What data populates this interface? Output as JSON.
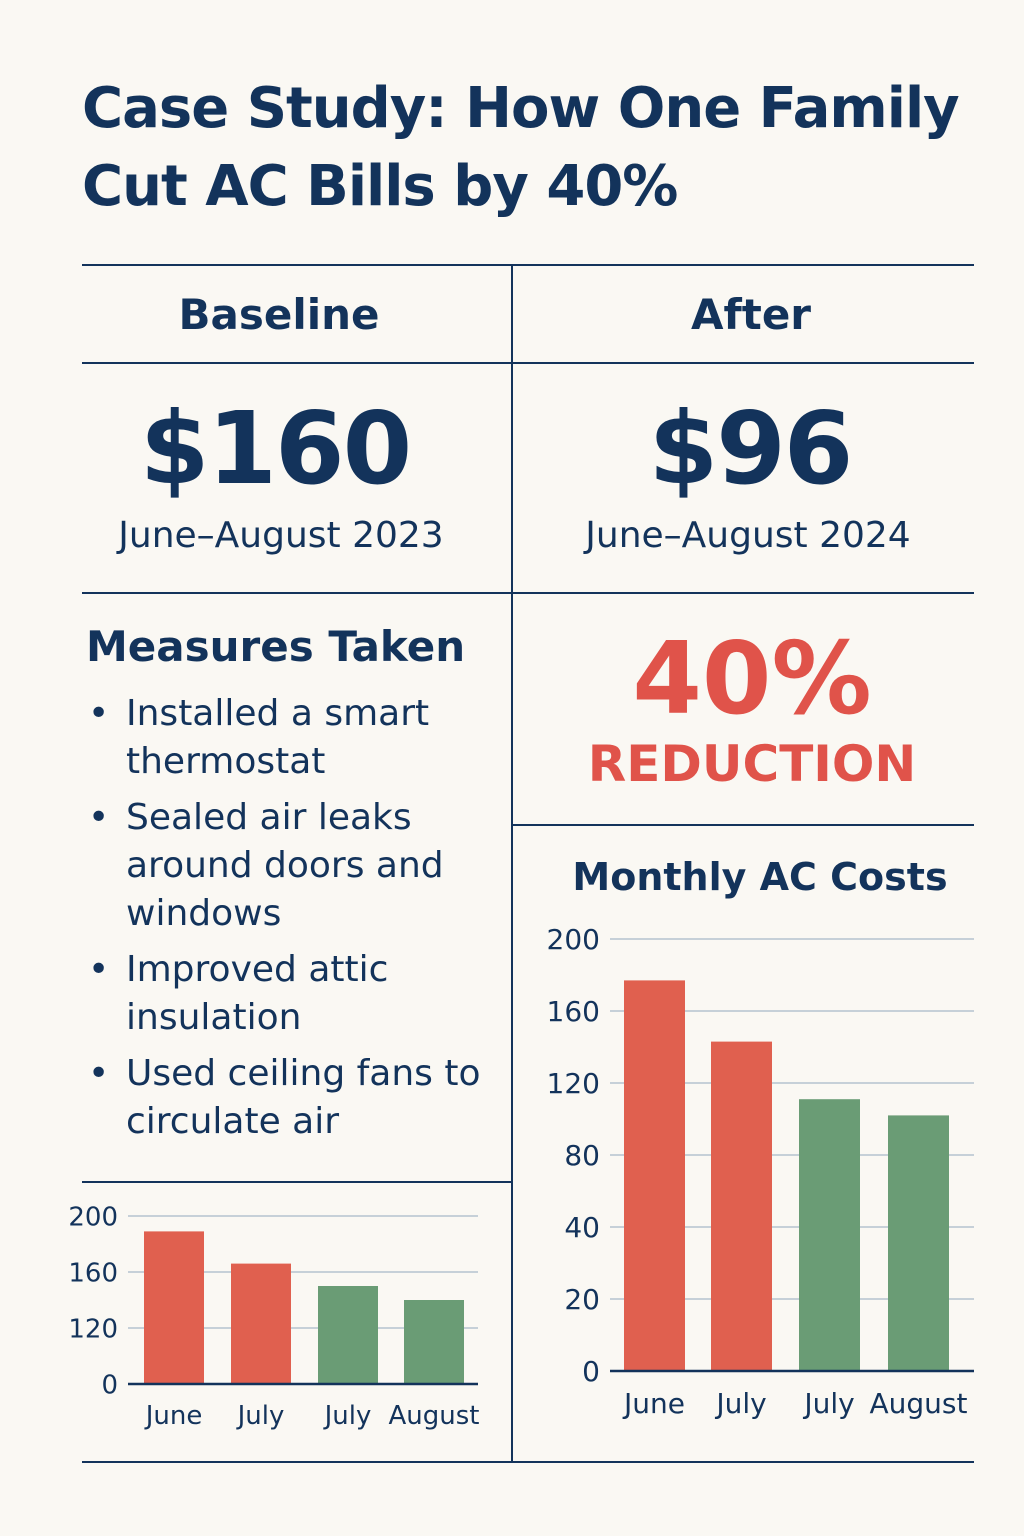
{
  "title": "Case Study: How One Family Cut AC Bills by 40%",
  "baseline": {
    "heading": "Baseline",
    "amount": "$160",
    "period": "June–August 2023"
  },
  "after": {
    "heading": "After",
    "amount": "$96",
    "period": "June–August 2024"
  },
  "measures": {
    "title": "Measures Taken",
    "items": [
      "Installed a smart thermostat",
      "Sealed air leaks around doors and windows",
      "Improved attic insulation",
      "Used ceiling fans to circulate air"
    ]
  },
  "reduction": {
    "percent": "40%",
    "label": "REDUCTION"
  },
  "colors": {
    "navy": "#13335b",
    "red": "#e0604f",
    "green": "#6a9c75",
    "grid": "#b4c2d0",
    "background": "#faf8f3"
  },
  "chart_data": [
    {
      "type": "bar",
      "title": "",
      "categories": [
        "June",
        "July",
        "July",
        "August"
      ],
      "values": [
        189,
        166,
        150,
        140
      ],
      "bar_colors": [
        "#e0604f",
        "#e0604f",
        "#6a9c75",
        "#6a9c75"
      ],
      "yticks": [
        0,
        120,
        160,
        200
      ],
      "ylim": [
        0,
        200
      ],
      "grid": true
    },
    {
      "type": "bar",
      "title": "Monthly AC Costs",
      "categories": [
        "June",
        "July",
        "July",
        "August"
      ],
      "values": [
        177,
        143,
        111,
        102
      ],
      "bar_colors": [
        "#e0604f",
        "#e0604f",
        "#6a9c75",
        "#6a9c75"
      ],
      "yticks": [
        0,
        20,
        40,
        80,
        120,
        160,
        200
      ],
      "ylim": [
        0,
        200
      ],
      "grid": true
    }
  ]
}
